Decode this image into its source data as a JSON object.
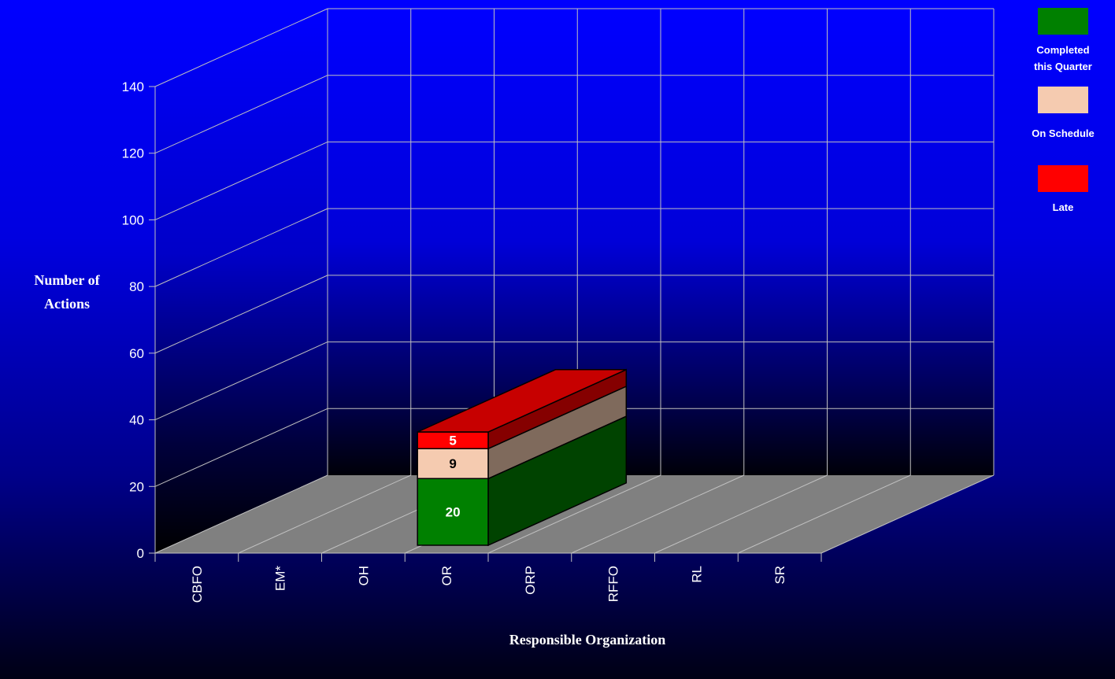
{
  "chart_data": {
    "type": "bar",
    "stacked": true,
    "three_d": true,
    "categories": [
      "CBFO",
      "EM*",
      "OH",
      "OR",
      "ORP",
      "RFFO",
      "RL",
      "SR"
    ],
    "series": [
      {
        "name": "Completed this Quarter",
        "color": "#008000",
        "values": [
          0,
          0,
          0,
          20,
          0,
          0,
          0,
          0
        ]
      },
      {
        "name": "On Schedule",
        "color": "#f5cbb0",
        "values": [
          0,
          0,
          0,
          9,
          0,
          0,
          0,
          0
        ]
      },
      {
        "name": "Late",
        "color": "#ff0000",
        "values": [
          0,
          0,
          0,
          5,
          0,
          0,
          0,
          0
        ]
      }
    ],
    "ylabel": "Number of Actions",
    "xlabel": "Responsible Organization",
    "ylim": [
      0,
      140
    ],
    "yticks": [
      0,
      20,
      40,
      60,
      80,
      100,
      120,
      140
    ],
    "grid": true,
    "legend_position": "top-right"
  },
  "axes": {
    "ylabel_line1": "Number of",
    "ylabel_line2": "Actions",
    "xlabel": "Responsible Organization"
  },
  "legend": {
    "completed_line1": "Completed",
    "completed_line2": "this Quarter",
    "on_schedule": "On Schedule",
    "late": "Late"
  }
}
